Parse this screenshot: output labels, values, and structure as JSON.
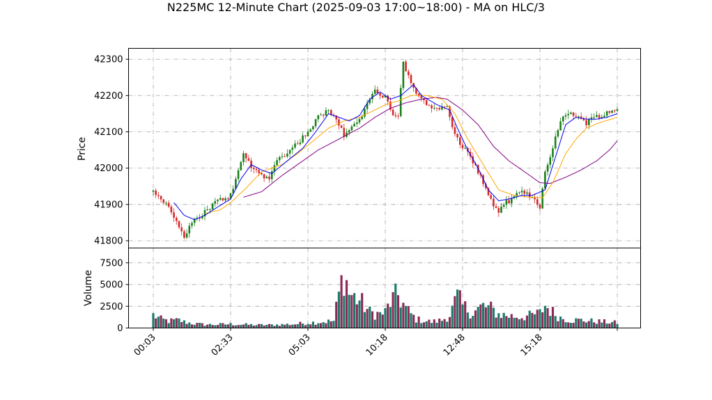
{
  "chart_data": {
    "type": "candlestick",
    "title": "N225MC 12-Minute Chart (2025-09-03 17:00~18:00) - MA on HLC/3",
    "price_panel": {
      "ylabel": "Price",
      "ylim": [
        41780,
        42330
      ],
      "yticks": [
        41800,
        41900,
        42000,
        42100,
        42200,
        42300
      ],
      "grid": true
    },
    "volume_panel": {
      "ylabel": "Volume",
      "ylim": [
        0,
        9200
      ],
      "yticks": [
        0,
        2500,
        5000,
        7500
      ],
      "grid": true
    },
    "x_range": [
      0,
      180
    ],
    "xticks": [
      {
        "index": 0,
        "label": "00:03"
      },
      {
        "index": 30,
        "label": "02:33"
      },
      {
        "index": 60,
        "label": "05:03"
      },
      {
        "index": 90,
        "label": "10:18"
      },
      {
        "index": 120,
        "label": "12:48"
      },
      {
        "index": 150,
        "label": "15:18"
      },
      {
        "index": 180,
        "label": ""
      }
    ],
    "colors": {
      "up": "#1a7f1a",
      "down": "#d62728",
      "ma_short": "#0000ee",
      "ma_mid": "#ffa500",
      "ma_long": "#800080",
      "vol_a": "#1b7a6a",
      "vol_b": "#8b2a57"
    },
    "price_path": [
      [
        0,
        41935
      ],
      [
        5,
        41905
      ],
      [
        10,
        41840
      ],
      [
        12,
        41815
      ],
      [
        16,
        41855
      ],
      [
        20,
        41880
      ],
      [
        25,
        41910
      ],
      [
        30,
        41925
      ],
      [
        33,
        41990
      ],
      [
        35,
        42040
      ],
      [
        38,
        42005
      ],
      [
        42,
        41980
      ],
      [
        45,
        41975
      ],
      [
        48,
        42020
      ],
      [
        52,
        42045
      ],
      [
        56,
        42070
      ],
      [
        60,
        42100
      ],
      [
        64,
        42140
      ],
      [
        68,
        42160
      ],
      [
        71,
        42140
      ],
      [
        74,
        42090
      ],
      [
        76,
        42110
      ],
      [
        80,
        42130
      ],
      [
        83,
        42180
      ],
      [
        86,
        42210
      ],
      [
        88,
        42200
      ],
      [
        90,
        42195
      ],
      [
        93,
        42150
      ],
      [
        95,
        42140
      ],
      [
        97,
        42290
      ],
      [
        100,
        42230
      ],
      [
        103,
        42200
      ],
      [
        106,
        42180
      ],
      [
        110,
        42160
      ],
      [
        114,
        42170
      ],
      [
        117,
        42090
      ],
      [
        120,
        42060
      ],
      [
        124,
        42020
      ],
      [
        128,
        41960
      ],
      [
        131,
        41910
      ],
      [
        134,
        41880
      ],
      [
        137,
        41905
      ],
      [
        140,
        41920
      ],
      [
        143,
        41935
      ],
      [
        147,
        41920
      ],
      [
        150,
        41895
      ],
      [
        152,
        41990
      ],
      [
        155,
        42060
      ],
      [
        158,
        42130
      ],
      [
        162,
        42155
      ],
      [
        165,
        42140
      ],
      [
        168,
        42125
      ],
      [
        171,
        42140
      ],
      [
        175,
        42150
      ],
      [
        180,
        42160
      ]
    ],
    "ma_short": [
      [
        8,
        41905
      ],
      [
        12,
        41870
      ],
      [
        16,
        41858
      ],
      [
        20,
        41870
      ],
      [
        25,
        41893
      ],
      [
        30,
        41915
      ],
      [
        34,
        41970
      ],
      [
        38,
        42010
      ],
      [
        42,
        41995
      ],
      [
        46,
        41985
      ],
      [
        52,
        42020
      ],
      [
        58,
        42055
      ],
      [
        63,
        42100
      ],
      [
        68,
        42150
      ],
      [
        72,
        42140
      ],
      [
        76,
        42130
      ],
      [
        80,
        42145
      ],
      [
        84,
        42190
      ],
      [
        88,
        42210
      ],
      [
        92,
        42190
      ],
      [
        96,
        42200
      ],
      [
        101,
        42230
      ],
      [
        104,
        42200
      ],
      [
        110,
        42175
      ],
      [
        115,
        42160
      ],
      [
        118,
        42110
      ],
      [
        122,
        42050
      ],
      [
        126,
        42000
      ],
      [
        130,
        41940
      ],
      [
        134,
        41910
      ],
      [
        138,
        41915
      ],
      [
        143,
        41925
      ],
      [
        147,
        41925
      ],
      [
        152,
        41940
      ],
      [
        156,
        42030
      ],
      [
        160,
        42120
      ],
      [
        164,
        42140
      ],
      [
        168,
        42135
      ],
      [
        172,
        42135
      ],
      [
        176,
        42140
      ],
      [
        180,
        42150
      ]
    ],
    "ma_mid": [
      [
        20,
        41875
      ],
      [
        26,
        41885
      ],
      [
        30,
        41905
      ],
      [
        36,
        41945
      ],
      [
        42,
        41990
      ],
      [
        50,
        42010
      ],
      [
        56,
        42040
      ],
      [
        62,
        42075
      ],
      [
        68,
        42110
      ],
      [
        74,
        42130
      ],
      [
        80,
        42140
      ],
      [
        86,
        42160
      ],
      [
        90,
        42175
      ],
      [
        95,
        42185
      ],
      [
        100,
        42200
      ],
      [
        106,
        42200
      ],
      [
        112,
        42190
      ],
      [
        117,
        42150
      ],
      [
        122,
        42080
      ],
      [
        128,
        42010
      ],
      [
        134,
        41940
      ],
      [
        140,
        41925
      ],
      [
        146,
        41920
      ],
      [
        151,
        41918
      ],
      [
        155,
        41960
      ],
      [
        160,
        42040
      ],
      [
        164,
        42080
      ],
      [
        168,
        42110
      ],
      [
        173,
        42125
      ],
      [
        180,
        42140
      ]
    ],
    "ma_long": [
      [
        35,
        41920
      ],
      [
        42,
        41935
      ],
      [
        50,
        41980
      ],
      [
        58,
        42020
      ],
      [
        64,
        42050
      ],
      [
        72,
        42080
      ],
      [
        80,
        42110
      ],
      [
        86,
        42140
      ],
      [
        92,
        42165
      ],
      [
        98,
        42180
      ],
      [
        104,
        42190
      ],
      [
        110,
        42195
      ],
      [
        114,
        42190
      ],
      [
        120,
        42160
      ],
      [
        126,
        42120
      ],
      [
        132,
        42060
      ],
      [
        138,
        42020
      ],
      [
        144,
        41990
      ],
      [
        150,
        41960
      ],
      [
        154,
        41958
      ],
      [
        160,
        41975
      ],
      [
        166,
        41995
      ],
      [
        172,
        42020
      ],
      [
        177,
        42050
      ],
      [
        180,
        42075
      ]
    ],
    "volume_profile": [
      [
        0,
        1500
      ],
      [
        3,
        1000
      ],
      [
        6,
        800
      ],
      [
        10,
        900
      ],
      [
        12,
        700
      ],
      [
        16,
        500
      ],
      [
        20,
        400
      ],
      [
        25,
        400
      ],
      [
        30,
        450
      ],
      [
        35,
        400
      ],
      [
        40,
        350
      ],
      [
        45,
        350
      ],
      [
        50,
        400
      ],
      [
        55,
        450
      ],
      [
        60,
        600
      ],
      [
        65,
        700
      ],
      [
        70,
        800
      ],
      [
        72,
        3800
      ],
      [
        74,
        6500
      ],
      [
        76,
        4000
      ],
      [
        78,
        3500
      ],
      [
        80,
        3200
      ],
      [
        84,
        1800
      ],
      [
        88,
        1600
      ],
      [
        90,
        1800
      ],
      [
        92,
        3000
      ],
      [
        95,
        3800
      ],
      [
        98,
        2200
      ],
      [
        102,
        1000
      ],
      [
        108,
        700
      ],
      [
        112,
        900
      ],
      [
        115,
        1500
      ],
      [
        118,
        3500
      ],
      [
        120,
        2500
      ],
      [
        124,
        1800
      ],
      [
        128,
        2500
      ],
      [
        131,
        2200
      ],
      [
        134,
        1600
      ],
      [
        138,
        1400
      ],
      [
        142,
        1300
      ],
      [
        146,
        1400
      ],
      [
        150,
        1700
      ],
      [
        152,
        2600
      ],
      [
        155,
        1800
      ],
      [
        158,
        1200
      ],
      [
        162,
        900
      ],
      [
        166,
        900
      ],
      [
        170,
        800
      ],
      [
        175,
        700
      ],
      [
        180,
        600
      ]
    ]
  }
}
